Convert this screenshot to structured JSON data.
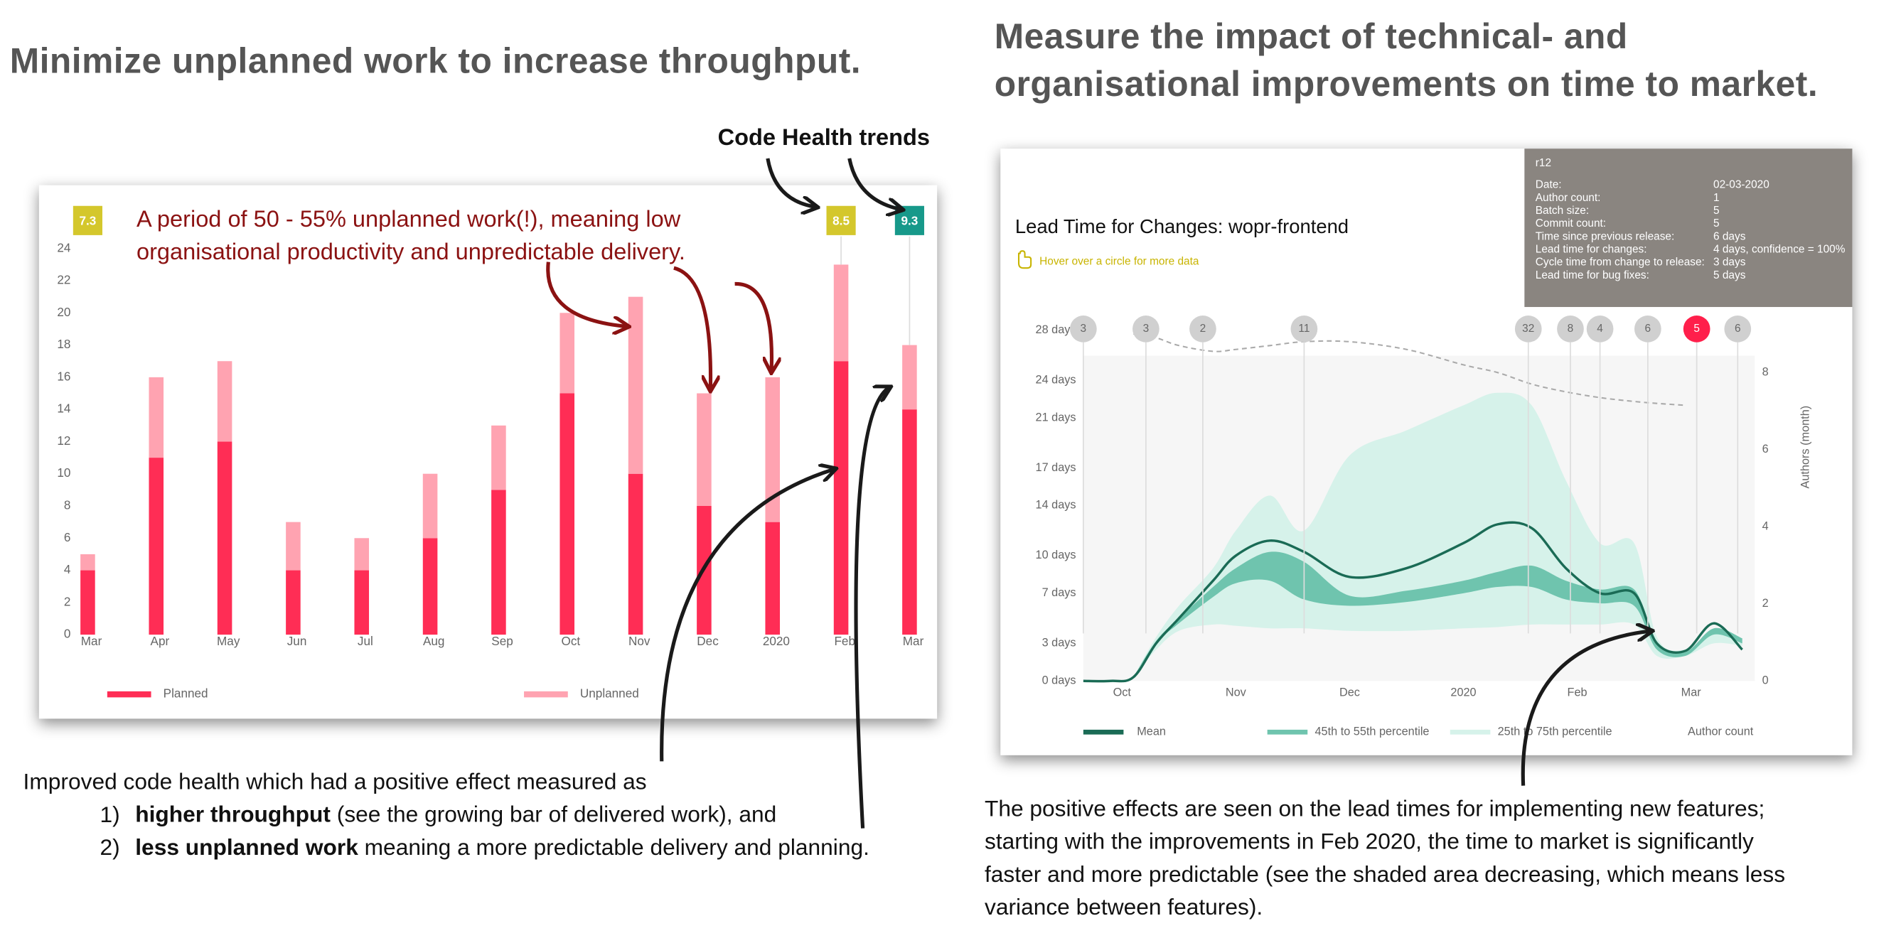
{
  "panels": [
    {
      "heading": "Minimize unplanned work to increase throughput.",
      "caption": "Improved code health which had a positive effect measured as",
      "items": [
        {
          "number": "1)",
          "bold": "higher throughput",
          "text": " (see the growing bar of delivered work), and"
        },
        {
          "number": "2)",
          "bold": "less unplanned work",
          "text": " meaning a more predictable delivery and planning."
        }
      ]
    },
    {
      "heading": [
        "Measure the impact of technical- and",
        "organisational improvements on time to market."
      ],
      "caption": [
        "The positive effects are seen on the lead times for implementing new features;",
        "starting with the improvements in Feb 2020, the time to market is significantly",
        "faster and more predictable (see the shaded area decreasing, which means less",
        "variance between features)."
      ]
    }
  ],
  "chart_data": [
    {
      "type": "bar",
      "stacked": true,
      "categories": [
        "Mar",
        "Apr",
        "May",
        "Jun",
        "Jul",
        "Aug",
        "Sep",
        "Oct",
        "Nov",
        "Dec",
        "2020",
        "Feb",
        "Mar"
      ],
      "series": [
        {
          "name": "Planned",
          "color": "#ff2d55",
          "values": [
            4,
            11,
            12,
            4,
            4,
            6,
            9,
            15,
            10,
            8,
            7,
            17,
            14
          ]
        },
        {
          "name": "Unplanned",
          "color": "#ffa3b1",
          "values": [
            1,
            5,
            5,
            3,
            2,
            4,
            4,
            5,
            11,
            7,
            9,
            6,
            4
          ]
        }
      ],
      "ylim": [
        0,
        24
      ],
      "yticks": [
        0,
        2,
        4,
        6,
        8,
        10,
        12,
        14,
        16,
        18,
        20,
        22,
        24
      ],
      "code_health": {
        "values": [
          7.3,
          null,
          null,
          null,
          null,
          null,
          null,
          null,
          null,
          null,
          null,
          8.5,
          9.3
        ],
        "colors": [
          "#d4c72c",
          null,
          null,
          null,
          null,
          null,
          null,
          null,
          null,
          null,
          null,
          "#d4c72c",
          "#17998a"
        ]
      },
      "code_health_title": "Code Health trends",
      "annotation": [
        "A period of 50 - 55% unplanned work(!), meaning low",
        "organisational productivity and unpredictable delivery."
      ],
      "annotation_color": "#8b1212"
    },
    {
      "type": "area",
      "title": "Lead Time for Changes: wopr-frontend",
      "hint": "Hover over a circle for more data",
      "x": [
        -0.34,
        -0.1,
        0.1,
        0.3,
        0.5,
        0.8,
        1.0,
        1.3,
        1.6,
        2.0,
        2.5,
        3.0,
        3.3,
        3.6,
        3.9,
        4.2,
        4.5,
        4.7,
        4.95,
        5.2,
        5.45
      ],
      "xlim": [
        -0.34,
        5.56
      ],
      "xticks": [
        {
          "value": 0,
          "label": "Oct"
        },
        {
          "value": 1,
          "label": "Nov"
        },
        {
          "value": 2,
          "label": "Dec"
        },
        {
          "value": 3,
          "label": "2020"
        },
        {
          "value": 4,
          "label": "Feb"
        },
        {
          "value": 5,
          "label": "Mar"
        }
      ],
      "ylim": [
        0,
        28
      ],
      "yticks": [
        {
          "value": 0,
          "label": "0 days"
        },
        {
          "value": 3,
          "label": "3 days"
        },
        {
          "value": 7,
          "label": "7 days"
        },
        {
          "value": 10,
          "label": "10 days"
        },
        {
          "value": 14,
          "label": "14 days"
        },
        {
          "value": 17,
          "label": "17 days"
        },
        {
          "value": 21,
          "label": "21 days"
        },
        {
          "value": 24,
          "label": "24 days"
        },
        {
          "value": 28,
          "label": "28 days"
        }
      ],
      "y2lim": [
        0,
        9.1
      ],
      "y2ticks": [
        0,
        2,
        4,
        6,
        8
      ],
      "y2label": "Authors (month)",
      "series": [
        {
          "name": "Mean",
          "color": "#1a6b55",
          "values": [
            0,
            0,
            0.3,
            3,
            5,
            8,
            10,
            11.2,
            10.3,
            8.3,
            9,
            11,
            12.5,
            12.2,
            9,
            7,
            7,
            3,
            2.4,
            4.6,
            2.5
          ]
        },
        {
          "name": "45th to 55th percentile",
          "color": "#6fc4ae",
          "low": [
            null,
            null,
            0.3,
            3,
            4.6,
            6.7,
            7.8,
            8,
            6.5,
            6,
            6.3,
            7,
            7.5,
            7.5,
            6.5,
            6.2,
            6,
            2.5,
            2,
            3.7,
            3
          ],
          "high": [
            null,
            null,
            0.3,
            3.2,
            5,
            7.5,
            9,
            10.3,
            9.5,
            6.8,
            7.2,
            8,
            8.7,
            9.2,
            8,
            7.3,
            7.3,
            3,
            2.3,
            4.2,
            3.4
          ]
        },
        {
          "name": "25th to 75th percentile",
          "color": "#d6f2ea",
          "low": [
            null,
            null,
            0.3,
            2.5,
            4,
            4.5,
            4.4,
            4.2,
            4.2,
            4,
            4,
            4.2,
            4.3,
            4.5,
            4.5,
            4.5,
            4.5,
            2,
            2,
            3,
            2.8
          ],
          "high": [
            null,
            null,
            0.3,
            3.5,
            6,
            9,
            12,
            14.8,
            12,
            18,
            20,
            22,
            23,
            22,
            16,
            11,
            11,
            3.5,
            2.5,
            4,
            3.2
          ]
        },
        {
          "name": "Author count",
          "color": "#aaaaaa",
          "axis": "y2",
          "values": [
            null,
            null,
            9.0,
            8.9,
            8.7,
            8.55,
            8.6,
            8.7,
            8.8,
            8.8,
            8.6,
            8.2,
            8.0,
            7.7,
            7.5,
            7.35,
            7.25,
            7.2,
            7.15,
            null,
            null
          ]
        }
      ],
      "releases": {
        "x": [
          -0.34,
          0.21,
          0.71,
          1.6,
          3.57,
          3.94,
          4.2,
          4.62,
          5.05,
          5.41
        ],
        "values": [
          3,
          3,
          2,
          11,
          32,
          8,
          4,
          6,
          5,
          6
        ],
        "colors": [
          "#d0d0d0",
          "#d0d0d0",
          "#d0d0d0",
          "#d0d0d0",
          "#d0d0d0",
          "#d0d0d0",
          "#d0d0d0",
          "#d0d0d0",
          "#ff1f4b",
          "#d0d0d0"
        ]
      },
      "tooltip": {
        "title": "r12",
        "rows": [
          [
            "Date:",
            "02-03-2020"
          ],
          [
            "Author count:",
            "1"
          ],
          [
            "Batch size:",
            "5"
          ],
          [
            "Commit count:",
            "5"
          ],
          [
            "Time since previous release:",
            "6 days"
          ],
          [
            "Lead time for changes:",
            "4 days, confidence = 100%"
          ],
          [
            "Cycle time from change to release:",
            "3 days"
          ],
          [
            "Lead time for bug fixes:",
            "5 days"
          ]
        ]
      }
    }
  ]
}
